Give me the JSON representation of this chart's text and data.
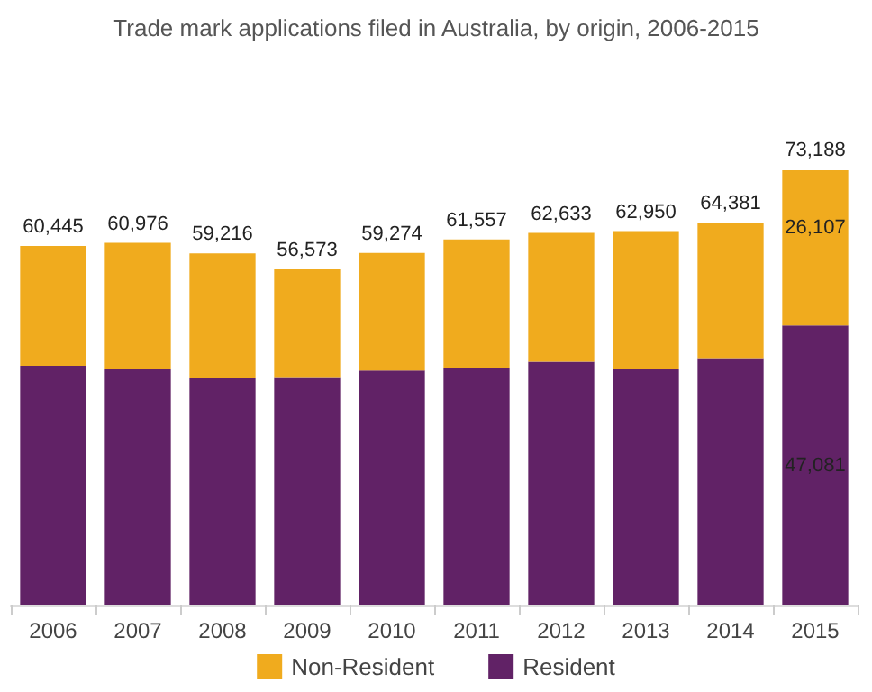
{
  "chart_data": {
    "type": "bar",
    "title": "Trade mark applications filed in Australia, by origin, 2006-2015",
    "categories": [
      "2006",
      "2007",
      "2008",
      "2009",
      "2010",
      "2011",
      "2012",
      "2013",
      "2014",
      "2015"
    ],
    "stacked": true,
    "series": [
      {
        "name": "Resident",
        "color": "#612266",
        "values": [
          40300,
          39700,
          38200,
          38400,
          39500,
          40000,
          41000,
          39700,
          41600,
          47081
        ],
        "value_labels": [
          null,
          null,
          null,
          null,
          null,
          null,
          null,
          null,
          null,
          "47,081"
        ]
      },
      {
        "name": "Non-Resident",
        "color": "#f0ab1e",
        "values": [
          20145,
          21276,
          21016,
          18173,
          19774,
          21557,
          21633,
          23250,
          22781,
          26107
        ],
        "value_labels": [
          null,
          null,
          null,
          null,
          null,
          null,
          null,
          null,
          null,
          "26,107"
        ]
      }
    ],
    "totals": [
      "60,445",
      "60,976",
      "59,216",
      "56,573",
      "59,274",
      "61,557",
      "62,633",
      "62,950",
      "64,381",
      "73,188"
    ],
    "legend": "bottom"
  }
}
